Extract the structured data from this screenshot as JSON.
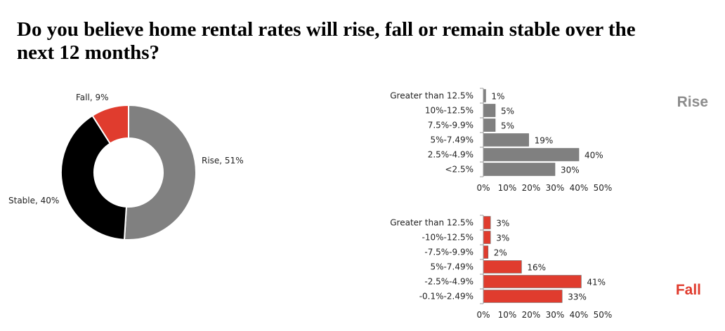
{
  "title": "Do you believe home rental rates will rise, fall or remain stable over the next 12 months?",
  "chart_data": [
    {
      "type": "pie",
      "slices": [
        {
          "name": "Rise",
          "value": 51,
          "label": "Rise, 51%",
          "color": "#808080"
        },
        {
          "name": "Stable",
          "value": 40,
          "label": "Stable, 40%",
          "color": "#000000"
        },
        {
          "name": "Fall",
          "value": 9,
          "label": "Fall, 9%",
          "color": "#e03c2e"
        }
      ]
    },
    {
      "type": "bar",
      "orientation": "horizontal",
      "side_label": "Rise",
      "side_label_color": "#8c8c8c",
      "bar_color": "#808080",
      "categories": [
        "Greater than 12.5%",
        "10%-12.5%",
        "7.5%-9.9%",
        "5%-7.49%",
        "2.5%-4.9%",
        "<2.5%"
      ],
      "values": [
        1,
        5,
        5,
        19,
        40,
        30
      ],
      "data_labels": [
        "1%",
        "5%",
        "5%",
        "19%",
        "40%",
        "30%"
      ],
      "xlim": [
        0,
        50
      ],
      "xticks": [
        "0%",
        "10%",
        "20%",
        "30%",
        "40%",
        "50%"
      ]
    },
    {
      "type": "bar",
      "orientation": "horizontal",
      "side_label": "Fall",
      "side_label_color": "#e03c2e",
      "bar_color": "#e03c2e",
      "categories": [
        "Greater than 12.5%",
        "-10%-12.5%",
        "-7.5%-9.9%",
        "5%-7.49%",
        "-2.5%-4.9%",
        "-0.1%-2.49%"
      ],
      "values": [
        3,
        3,
        2,
        16,
        41,
        33
      ],
      "data_labels": [
        "3%",
        "3%",
        "2%",
        "16%",
        "41%",
        "33%"
      ],
      "xlim": [
        0,
        50
      ],
      "xticks": [
        "0%",
        "10%",
        "20%",
        "30%",
        "40%",
        "50%"
      ]
    }
  ]
}
